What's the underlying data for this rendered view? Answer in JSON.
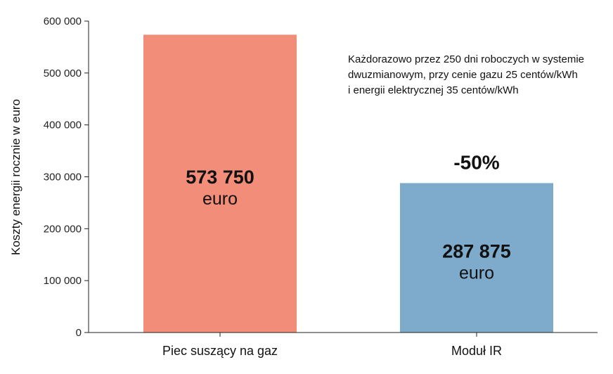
{
  "chart_data": {
    "type": "bar",
    "categories": [
      "Piec suszący na gaz",
      "Moduł IR"
    ],
    "values": [
      573750,
      287875
    ],
    "value_labels": [
      "573 750",
      "287 875"
    ],
    "value_unit": "euro",
    "colors": [
      "#F28D79",
      "#7EABCB"
    ],
    "ylabel": "Koszty energii rocznie w euro",
    "xlabel": "",
    "title": "",
    "ylim": [
      0,
      600000
    ],
    "yticks": [
      0,
      100000,
      200000,
      300000,
      400000,
      500000,
      600000
    ],
    "ytick_labels": [
      "0",
      "100 000",
      "200 000",
      "300 000",
      "400 000",
      "500 000",
      "600 000"
    ],
    "grid": false,
    "annotations": {
      "reduction": "-50%",
      "note_lines": [
        "Każdorazowo przez 250 dni roboczych w systemie",
        "dwuzmianowym, przy cenie gazu 25 centów/kWh",
        "i energii elektrycznej 35 centów/kWh"
      ]
    }
  }
}
